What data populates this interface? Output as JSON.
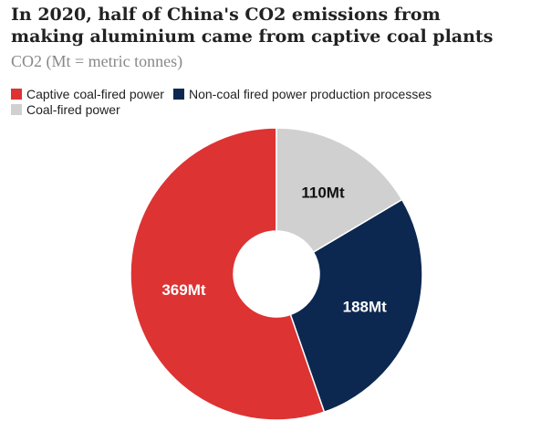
{
  "chart_data": {
    "type": "donut",
    "title": "In 2020, half of China's CO2 emissions from making aluminium came from captive coal plants",
    "subtitle": "CO2 (Mt = metric tonnes)",
    "categories": [
      "Captive coal-fired power",
      "Non-coal fired power production processes",
      "Coal-fired power"
    ],
    "values": [
      369,
      188,
      110
    ],
    "value_labels": [
      "369Mt",
      "188Mt",
      "110Mt"
    ],
    "colors": [
      "#dd3333",
      "#0c2850",
      "#d0d0d0"
    ]
  }
}
